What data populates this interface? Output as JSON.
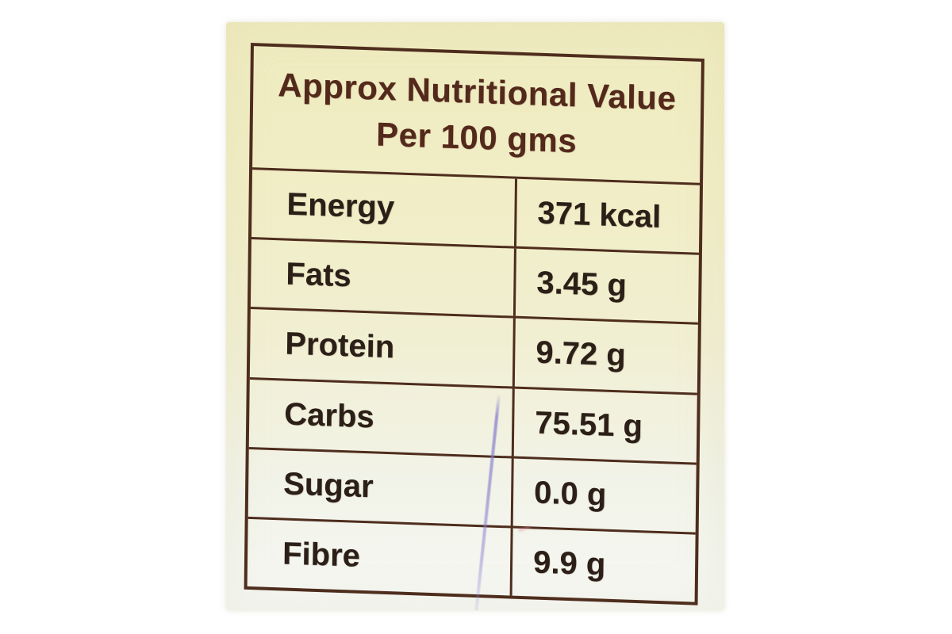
{
  "label": {
    "header": {
      "line1": "Approx Nutritional Value",
      "line2": "Per 100 gms"
    },
    "rows": [
      {
        "name": "Energy",
        "value": "371 kcal"
      },
      {
        "name": "Fats",
        "value": "3.45 g"
      },
      {
        "name": "Protein",
        "value": "9.72 g"
      },
      {
        "name": "Carbs",
        "value": "75.51 g"
      },
      {
        "name": "Sugar",
        "value": "0.0 g"
      },
      {
        "name": "Fibre",
        "value": "9.9 g"
      }
    ],
    "colors": {
      "page_background": "#ffffff",
      "label_background_top": "#efebbf",
      "label_background_bottom": "#f5f7f3",
      "table_border": "#4e2d1d",
      "header_text": "#53291b",
      "row_text": "#2b1f17",
      "pen_mark": "#837ccd"
    }
  }
}
